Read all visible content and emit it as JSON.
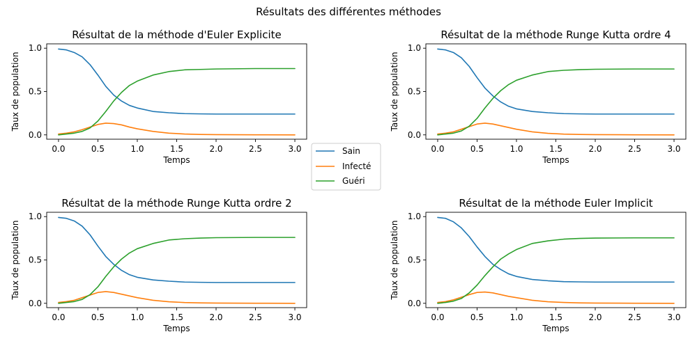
{
  "figure": {
    "title": "Résultats des différentes méthodes"
  },
  "legend": {
    "items": [
      {
        "label": "Sain",
        "color": "#1f77b4"
      },
      {
        "label": "Infecté",
        "color": "#ff7f0e"
      },
      {
        "label": "Guéri",
        "color": "#2ca02c"
      }
    ]
  },
  "chart_data": [
    {
      "type": "line",
      "title": "Résultat de la méthode d'Euler Explicite",
      "xlabel": "Temps",
      "ylabel": "Taux de population",
      "xlim": [
        -0.15,
        3.15
      ],
      "ylim": [
        -0.05,
        1.05
      ],
      "xticks": [
        0.0,
        0.5,
        1.0,
        1.5,
        2.0,
        2.5,
        3.0
      ],
      "xtick_labels": [
        "0.0",
        "0.5",
        "1.0",
        "1.5",
        "2.0",
        "2.5",
        "3.0"
      ],
      "yticks": [
        0.0,
        0.5,
        1.0
      ],
      "ytick_labels": [
        "0.0",
        "0.5",
        "1.0"
      ],
      "grid": false,
      "x": [
        0.0,
        0.1,
        0.2,
        0.3,
        0.4,
        0.5,
        0.6,
        0.7,
        0.8,
        0.9,
        1.0,
        1.2,
        1.4,
        1.6,
        1.8,
        2.0,
        2.5,
        3.0
      ],
      "series": [
        {
          "name": "Sain",
          "values": [
            0.99,
            0.98,
            0.95,
            0.9,
            0.81,
            0.69,
            0.56,
            0.46,
            0.39,
            0.34,
            0.31,
            0.27,
            0.255,
            0.245,
            0.242,
            0.24,
            0.24,
            0.24
          ]
        },
        {
          "name": "Infecté",
          "values": [
            0.01,
            0.02,
            0.035,
            0.06,
            0.09,
            0.12,
            0.135,
            0.13,
            0.115,
            0.09,
            0.07,
            0.04,
            0.02,
            0.01,
            0.005,
            0.003,
            0.001,
            0.0
          ]
        },
        {
          "name": "Guéri",
          "values": [
            0.0,
            0.01,
            0.02,
            0.04,
            0.08,
            0.16,
            0.27,
            0.39,
            0.49,
            0.57,
            0.62,
            0.69,
            0.73,
            0.75,
            0.755,
            0.76,
            0.765,
            0.765
          ]
        }
      ]
    },
    {
      "type": "line",
      "title": "Résultat de la méthode Runge Kutta ordre 4",
      "xlabel": "Temps",
      "ylabel": "Taux de population",
      "xlim": [
        -0.15,
        3.15
      ],
      "ylim": [
        -0.05,
        1.05
      ],
      "xticks": [
        0.0,
        0.5,
        1.0,
        1.5,
        2.0,
        2.5,
        3.0
      ],
      "xtick_labels": [
        "0.0",
        "0.5",
        "1.0",
        "1.5",
        "2.0",
        "2.5",
        "3.0"
      ],
      "yticks": [
        0.0,
        0.5,
        1.0
      ],
      "ytick_labels": [
        "0.0",
        "0.5",
        "1.0"
      ],
      "grid": false,
      "x": [
        0.0,
        0.1,
        0.2,
        0.3,
        0.4,
        0.5,
        0.6,
        0.7,
        0.8,
        0.9,
        1.0,
        1.2,
        1.4,
        1.6,
        1.8,
        2.0,
        2.5,
        3.0
      ],
      "series": [
        {
          "name": "Sain",
          "values": [
            0.99,
            0.98,
            0.95,
            0.89,
            0.79,
            0.66,
            0.54,
            0.45,
            0.38,
            0.33,
            0.3,
            0.27,
            0.255,
            0.245,
            0.242,
            0.24,
            0.24,
            0.24
          ]
        },
        {
          "name": "Infecté",
          "values": [
            0.01,
            0.02,
            0.035,
            0.065,
            0.095,
            0.125,
            0.135,
            0.125,
            0.105,
            0.085,
            0.065,
            0.035,
            0.018,
            0.009,
            0.005,
            0.003,
            0.001,
            0.0
          ]
        },
        {
          "name": "Guéri",
          "values": [
            0.0,
            0.01,
            0.02,
            0.045,
            0.1,
            0.19,
            0.31,
            0.42,
            0.51,
            0.58,
            0.63,
            0.69,
            0.73,
            0.745,
            0.752,
            0.757,
            0.76,
            0.76
          ]
        }
      ]
    },
    {
      "type": "line",
      "title": "Résultat de la méthode Runge Kutta ordre 2",
      "xlabel": "Temps",
      "ylabel": "Taux de population",
      "xlim": [
        -0.15,
        3.15
      ],
      "ylim": [
        -0.05,
        1.05
      ],
      "xticks": [
        0.0,
        0.5,
        1.0,
        1.5,
        2.0,
        2.5,
        3.0
      ],
      "xtick_labels": [
        "0.0",
        "0.5",
        "1.0",
        "1.5",
        "2.0",
        "2.5",
        "3.0"
      ],
      "yticks": [
        0.0,
        0.5,
        1.0
      ],
      "ytick_labels": [
        "0.0",
        "0.5",
        "1.0"
      ],
      "grid": false,
      "x": [
        0.0,
        0.1,
        0.2,
        0.3,
        0.4,
        0.5,
        0.6,
        0.7,
        0.8,
        0.9,
        1.0,
        1.2,
        1.4,
        1.6,
        1.8,
        2.0,
        2.5,
        3.0
      ],
      "series": [
        {
          "name": "Sain",
          "values": [
            0.99,
            0.98,
            0.95,
            0.89,
            0.79,
            0.66,
            0.54,
            0.45,
            0.38,
            0.33,
            0.3,
            0.27,
            0.255,
            0.245,
            0.242,
            0.24,
            0.24,
            0.24
          ]
        },
        {
          "name": "Infecté",
          "values": [
            0.01,
            0.02,
            0.035,
            0.065,
            0.095,
            0.125,
            0.135,
            0.125,
            0.105,
            0.085,
            0.065,
            0.035,
            0.018,
            0.009,
            0.005,
            0.003,
            0.001,
            0.0
          ]
        },
        {
          "name": "Guéri",
          "values": [
            0.0,
            0.01,
            0.02,
            0.045,
            0.1,
            0.19,
            0.31,
            0.42,
            0.51,
            0.58,
            0.63,
            0.69,
            0.73,
            0.745,
            0.752,
            0.757,
            0.76,
            0.76
          ]
        }
      ]
    },
    {
      "type": "line",
      "title": "Résultat de la méthode Euler Implicit",
      "xlabel": "Temps",
      "ylabel": "Taux de population",
      "xlim": [
        -0.15,
        3.15
      ],
      "ylim": [
        -0.05,
        1.05
      ],
      "xticks": [
        0.0,
        0.5,
        1.0,
        1.5,
        2.0,
        2.5,
        3.0
      ],
      "xtick_labels": [
        "0.0",
        "0.5",
        "1.0",
        "1.5",
        "2.0",
        "2.5",
        "3.0"
      ],
      "yticks": [
        0.0,
        0.5,
        1.0
      ],
      "ytick_labels": [
        "0.0",
        "0.5",
        "1.0"
      ],
      "grid": false,
      "x": [
        0.0,
        0.1,
        0.2,
        0.3,
        0.4,
        0.5,
        0.6,
        0.7,
        0.8,
        0.9,
        1.0,
        1.2,
        1.4,
        1.6,
        1.8,
        2.0,
        2.5,
        3.0
      ],
      "series": [
        {
          "name": "Sain",
          "values": [
            0.99,
            0.98,
            0.94,
            0.87,
            0.77,
            0.65,
            0.54,
            0.45,
            0.39,
            0.34,
            0.31,
            0.275,
            0.26,
            0.25,
            0.247,
            0.245,
            0.245,
            0.245
          ]
        },
        {
          "name": "Infecté",
          "values": [
            0.01,
            0.02,
            0.04,
            0.07,
            0.1,
            0.125,
            0.13,
            0.12,
            0.1,
            0.08,
            0.065,
            0.035,
            0.018,
            0.01,
            0.005,
            0.003,
            0.001,
            0.0
          ]
        },
        {
          "name": "Guéri",
          "values": [
            0.0,
            0.01,
            0.025,
            0.055,
            0.12,
            0.21,
            0.32,
            0.42,
            0.51,
            0.57,
            0.62,
            0.69,
            0.72,
            0.74,
            0.748,
            0.752,
            0.755,
            0.755
          ]
        }
      ]
    }
  ]
}
